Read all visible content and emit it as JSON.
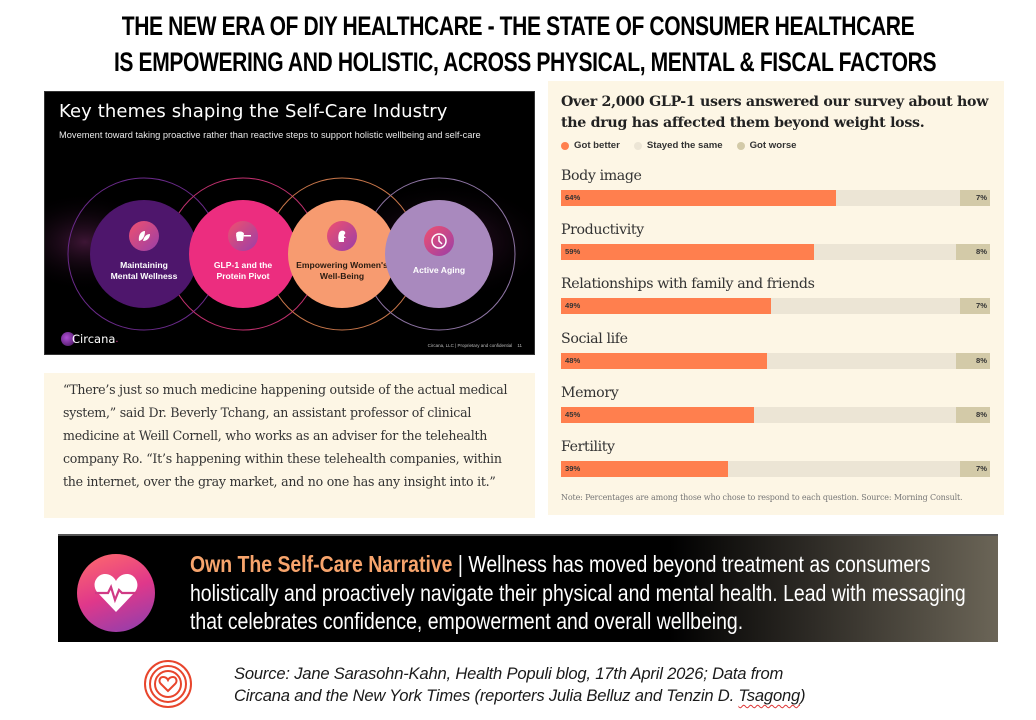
{
  "header": {
    "title_line1": "THE NEW ERA OF DIY HEALTHCARE - THE STATE OF CONSUMER HEALTHCARE",
    "title_line2": "IS EMPOWERING AND HOLISTIC, ACROSS PHYSICAL, MENTAL & FISCAL FACTORS"
  },
  "slide": {
    "title": "Key themes shaping the Self-Care Industry",
    "subtitle": "Movement toward taking proactive rather than reactive steps to support holistic wellbeing and self-care",
    "themes": [
      {
        "line1": "Maintaining",
        "line2": "Mental Wellness",
        "icon": "leaves-icon",
        "color": "#4e166c"
      },
      {
        "line1": "GLP-1 and the",
        "line2": "Protein Pivot",
        "icon": "protein-scoop-icon",
        "color": "#ec2d7f"
      },
      {
        "line1": "Empowering Women's",
        "line2": "Well-Being",
        "icon": "woman-profile-icon",
        "color": "#f79b70"
      },
      {
        "line1": "Active Aging",
        "line2": "",
        "icon": "clock-icon",
        "color": "#a989be"
      }
    ],
    "logo_text": "Circana",
    "logo_dot": ".",
    "footer": "Circana, LLC | Proprietary and confidential",
    "page_number": "11"
  },
  "quote": {
    "text": "“There’s just so much medicine happening outside of the actual medical system,” said Dr. Beverly Tchang, an assistant professor of clinical medicine at Weill Cornell, who works as an adviser for the telehealth company Ro. “It’s happening within these telehealth companies, within the internet, over the gray market, and no one has any insight into it.”"
  },
  "chart_data": {
    "type": "bar",
    "orientation": "horizontal-stacked",
    "title": "Over 2,000 GLP-1 users answered our survey about how the drug has affected them beyond weight loss.",
    "legend": [
      {
        "name": "Got better",
        "color": "#ff7f4e"
      },
      {
        "name": "Stayed the same",
        "color": "#ece5d5"
      },
      {
        "name": "Got worse",
        "color": "#d3caa8"
      }
    ],
    "legend_position": "top-left",
    "categories": [
      "Body image",
      "Productivity",
      "Relationships with family and friends",
      "Social life",
      "Memory",
      "Fertility"
    ],
    "series": [
      {
        "name": "Got better",
        "values": [
          64,
          59,
          49,
          48,
          45,
          39
        ]
      },
      {
        "name": "Stayed the same",
        "values": [
          29,
          33,
          44,
          44,
          47,
          54
        ]
      },
      {
        "name": "Got worse",
        "values": [
          7,
          8,
          7,
          8,
          8,
          7
        ]
      }
    ],
    "unit": "%",
    "xlim": [
      0,
      100
    ],
    "note": "Note: Percentages are among those who chose to respond to each question. Source: Morning Consult."
  },
  "banner": {
    "highlight": "Own The Self-Care Narrative",
    "separator": " | ",
    "text": "Wellness has moved beyond treatment as consumers holistically and proactively navigate their physical and mental health. Lead with messaging that celebrates confidence, empowerment and overall wellbeing.",
    "icon": "heart-pulse-icon"
  },
  "source": {
    "line1": "Source: Jane Sarasohn-Kahn, Health Populi blog, 17th April 2026; Data from",
    "line2_a": "Circana and the New York Times (reporters Julia Belluz and Tenzin D. ",
    "line2_b": "Tsagong",
    "line2_c": ")"
  }
}
